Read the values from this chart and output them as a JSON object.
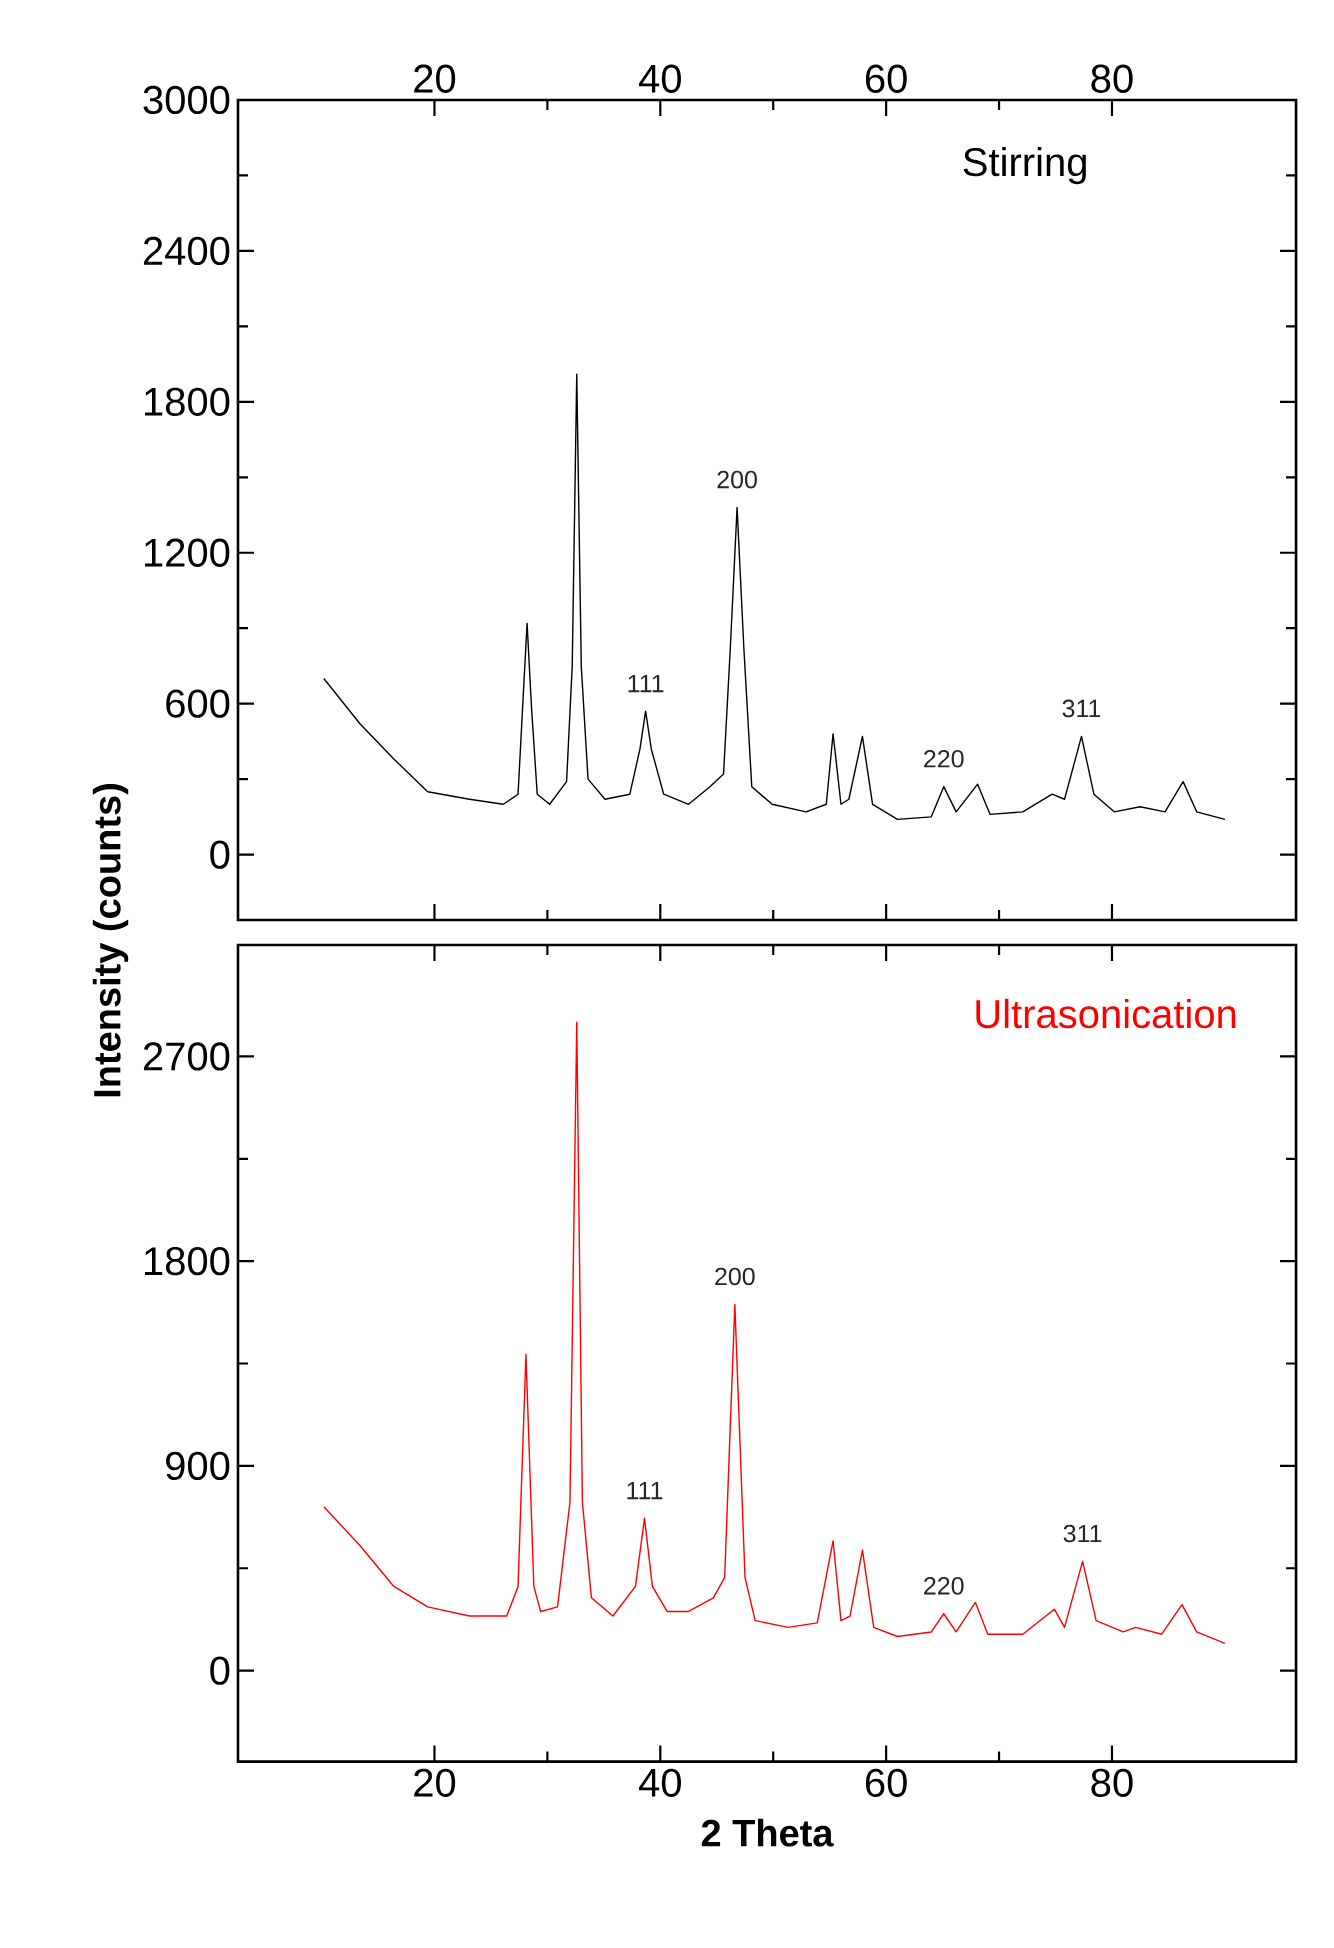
{
  "chart_data": [
    {
      "type": "line",
      "xlim": [
        2.6,
        96.3
      ],
      "xticks": [
        20,
        40,
        60,
        80
      ],
      "ylim": [
        -260,
        3000
      ],
      "yticks": [
        0,
        600,
        1200,
        1800,
        2400,
        3000
      ],
      "ylabel": "Intensity (counts)",
      "annotations": [
        {
          "text": "111",
          "x": 38.7,
          "y": 570
        },
        {
          "text": "200",
          "x": 46.8,
          "y": 1380
        },
        {
          "text": "220",
          "x": 65.1,
          "y": 270
        },
        {
          "text": "311",
          "x": 77.3,
          "y": 470
        }
      ],
      "series": [
        {
          "name": "Stirring",
          "color": "#000000",
          "x": [
            10.2,
            13.4,
            16.4,
            19.4,
            23.1,
            26.1,
            27.4,
            27.8,
            28.2,
            28.6,
            29.1,
            30.2,
            31.7,
            32.2,
            32.6,
            33.0,
            33.6,
            35.1,
            37.3,
            38.2,
            38.7,
            39.2,
            40.3,
            42.5,
            44.4,
            45.6,
            46.2,
            46.8,
            47.4,
            48.1,
            49.9,
            52.9,
            54.7,
            55.3,
            56.0,
            56.7,
            57.9,
            58.8,
            61.0,
            64.0,
            65.1,
            66.2,
            68.1,
            69.2,
            72.1,
            74.7,
            75.8,
            77.3,
            78.4,
            80.2,
            82.5,
            84.7,
            86.3,
            87.5,
            90.0
          ],
          "values": [
            700,
            520,
            380,
            250,
            220,
            200,
            240,
            580,
            920,
            580,
            240,
            200,
            290,
            750,
            1910,
            750,
            300,
            220,
            240,
            420,
            570,
            420,
            240,
            200,
            270,
            320,
            820,
            1380,
            820,
            270,
            200,
            170,
            200,
            480,
            200,
            220,
            470,
            200,
            140,
            150,
            270,
            170,
            280,
            160,
            170,
            240,
            220,
            470,
            240,
            170,
            190,
            170,
            290,
            170,
            140
          ]
        }
      ]
    },
    {
      "type": "line",
      "xlim": [
        2.6,
        96.3
      ],
      "xticks": [
        20,
        40,
        60,
        80
      ],
      "ylim": [
        -400,
        3190
      ],
      "yticks": [
        0,
        900,
        1800,
        2700
      ],
      "xlabel": "2 Theta",
      "annotations": [
        {
          "text": "111",
          "x": 38.6,
          "y": 670
        },
        {
          "text": "200",
          "x": 46.6,
          "y": 1610
        },
        {
          "text": "220",
          "x": 65.1,
          "y": 250
        },
        {
          "text": "311",
          "x": 77.4,
          "y": 480
        }
      ],
      "series": [
        {
          "name": "Ultrasonication",
          "color": "#ff0000",
          "x": [
            10.2,
            13.4,
            16.4,
            19.4,
            23.1,
            26.4,
            27.4,
            28.1,
            28.8,
            29.4,
            30.9,
            32.0,
            32.6,
            33.1,
            33.9,
            35.8,
            37.8,
            38.6,
            39.3,
            40.6,
            42.5,
            44.7,
            45.7,
            46.6,
            47.5,
            48.4,
            51.3,
            53.9,
            55.3,
            56.0,
            56.8,
            57.9,
            58.9,
            61.0,
            64.0,
            65.1,
            66.2,
            67.9,
            69.0,
            72.1,
            74.9,
            75.8,
            77.4,
            78.6,
            81.0,
            82.1,
            84.4,
            86.2,
            87.5,
            90.0
          ],
          "values": [
            720,
            550,
            370,
            280,
            240,
            240,
            370,
            1390,
            370,
            260,
            280,
            740,
            2850,
            740,
            320,
            240,
            370,
            670,
            370,
            260,
            260,
            320,
            410,
            1610,
            410,
            220,
            190,
            210,
            570,
            220,
            240,
            530,
            190,
            150,
            170,
            250,
            170,
            300,
            160,
            160,
            270,
            190,
            480,
            220,
            170,
            190,
            160,
            290,
            170,
            120
          ]
        }
      ]
    }
  ]
}
